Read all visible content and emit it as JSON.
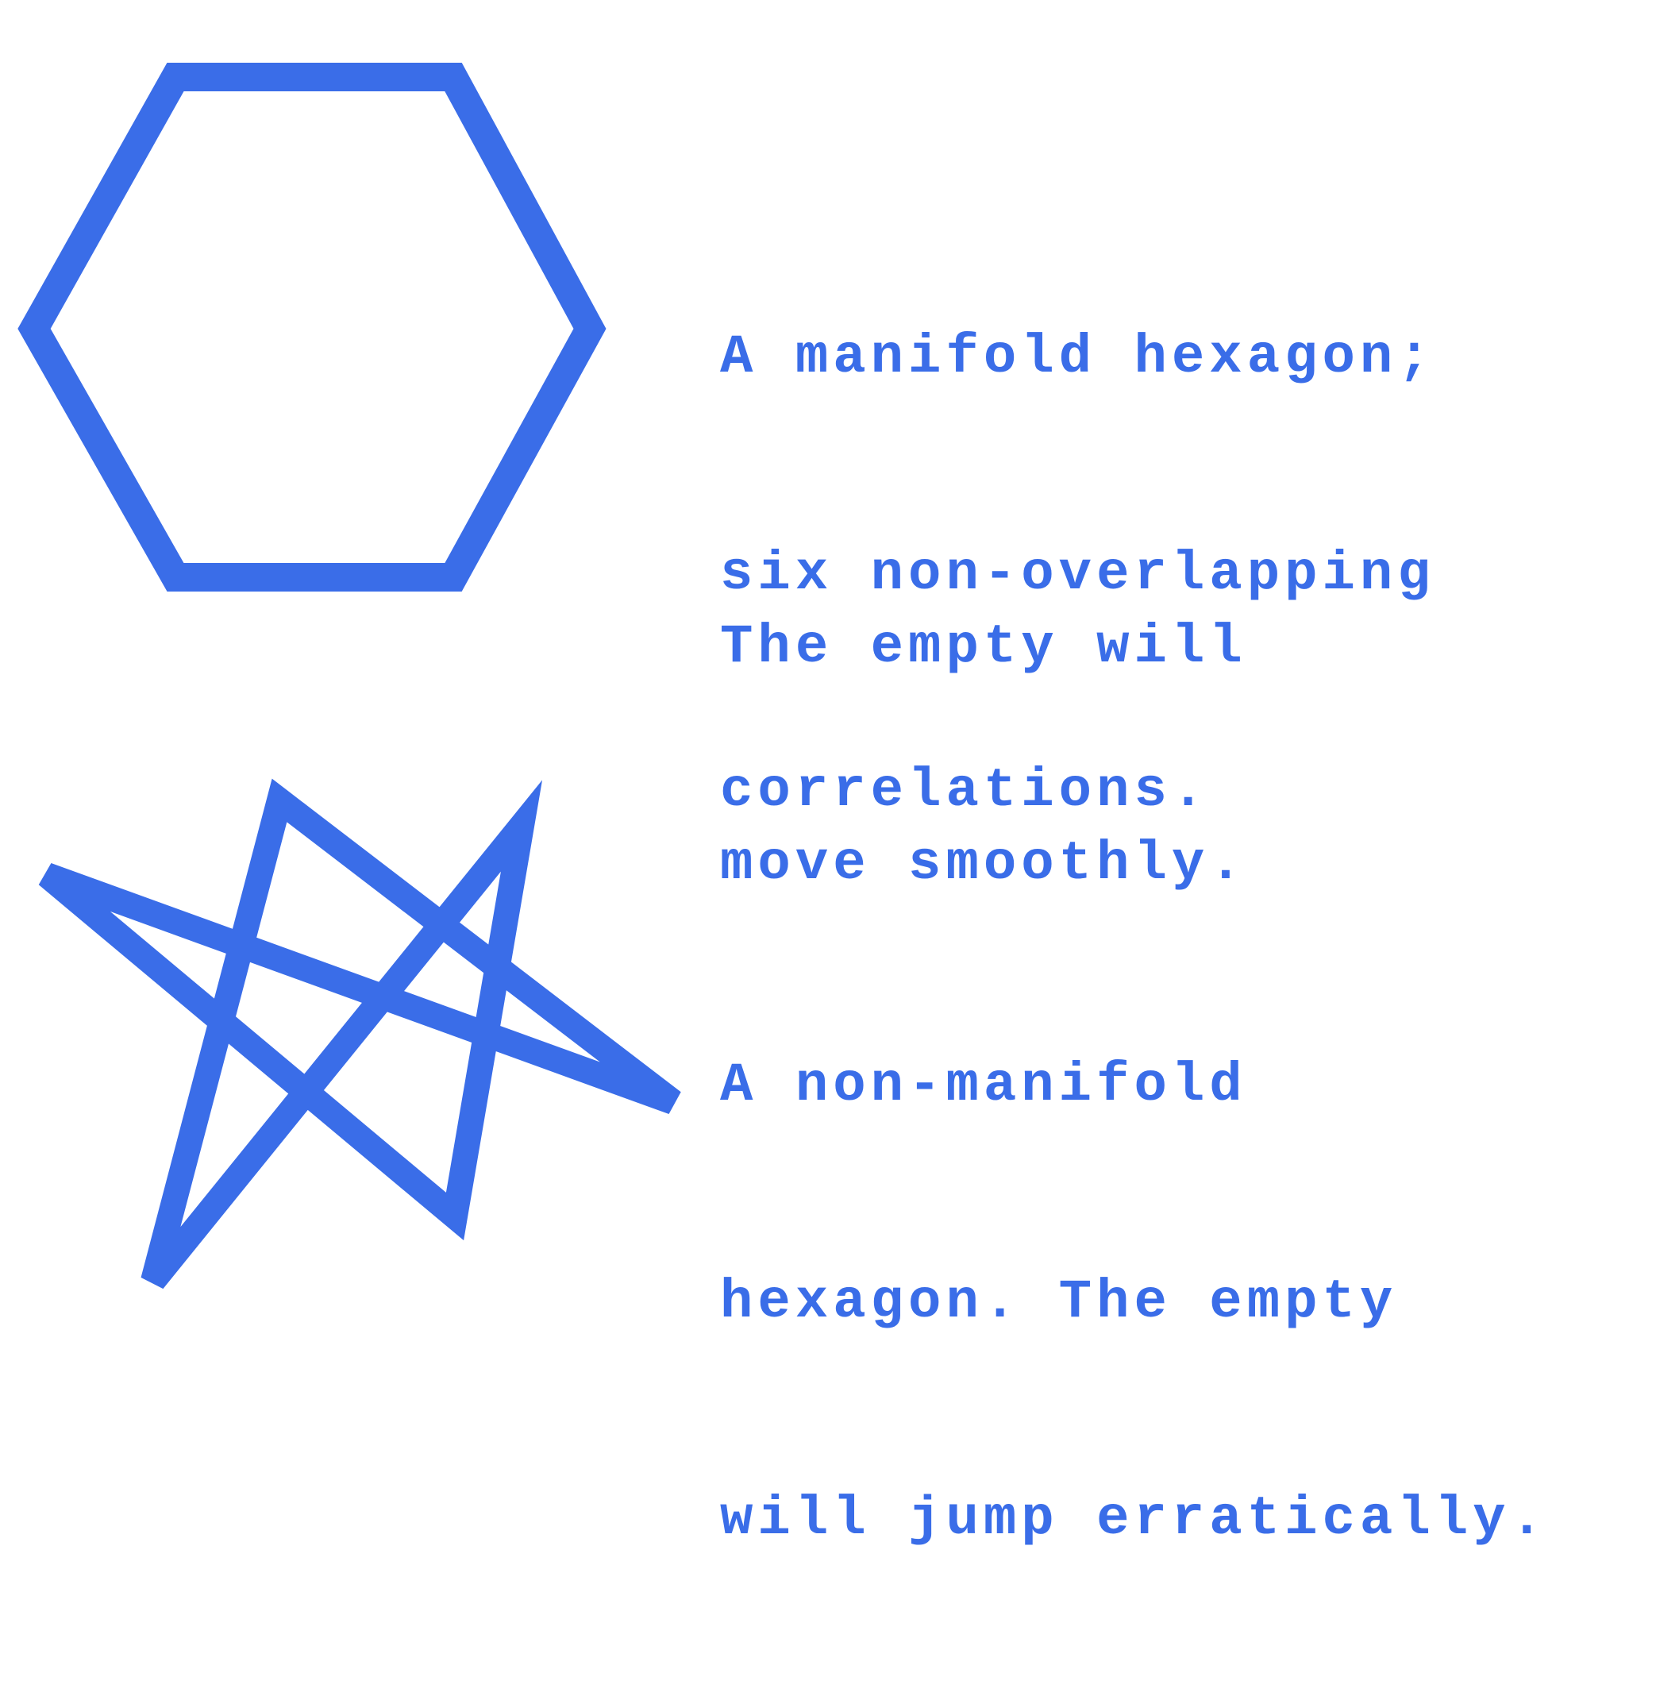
{
  "colors": {
    "shape_stroke": "#3a6de8",
    "text": "#3a6de8",
    "background": "#ffffff"
  },
  "top": {
    "shape": "manifold-hexagon",
    "caption_1": [
      "A manifold hexagon;",
      "six non-overlapping",
      "correlations."
    ],
    "caption_2": [
      "The empty will",
      "move smoothly."
    ]
  },
  "bottom": {
    "shape": "non-manifold-hexagon",
    "caption": [
      "A non-manifold",
      "hexagon. The empty",
      "will jump erratically."
    ]
  }
}
